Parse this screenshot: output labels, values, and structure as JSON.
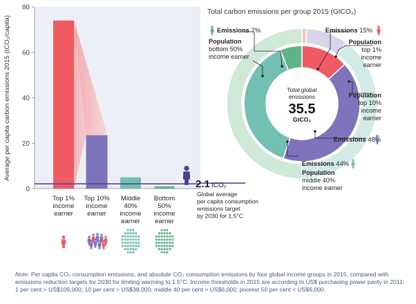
{
  "chart_data": [
    {
      "type": "bar",
      "ylabel": "Average per capita carbon emissions 2015 (tCO₂/capita)",
      "ylim": [
        0,
        80
      ],
      "yticks": [
        "0",
        "20",
        "40",
        "60",
        "80"
      ],
      "categories": [
        [
          "Top 1%",
          "income",
          "earner"
        ],
        [
          "Top 10%",
          "income",
          "earner"
        ],
        [
          "Middle",
          "40%",
          "income",
          "earner"
        ],
        [
          "Bottom",
          "50%",
          "income",
          "earner"
        ]
      ],
      "values": [
        74,
        23.5,
        5,
        1
      ],
      "colors": [
        "#ef5a63",
        "#7d74bc",
        "#72bfb3",
        "#5fb384"
      ],
      "reference_line": {
        "value": 2.1,
        "value_label": "2.1",
        "unit_label": "tCO₂",
        "caption": [
          "Global average",
          "per capita consumption",
          "emissions target",
          "by 2030 for 1.5°C"
        ]
      }
    },
    {
      "type": "pie",
      "title": "Total carbon emissions per group 2015 (GtCO₂)",
      "center": {
        "line1": "Total global",
        "line2": "emissions",
        "value": "35.5",
        "unit": "GtCO₂"
      },
      "emissions_ring": [
        {
          "group": "Top 1%",
          "bold": "Emissions",
          "pct": " 15%",
          "value": 15,
          "color": "#ef5a63"
        },
        {
          "group": "Top 10%",
          "bold": "Emissions",
          "pct": " 48%",
          "value": 48,
          "color": "#7d74bc"
        },
        {
          "group": "Middle 40%",
          "bold": "Emissions",
          "pct": " 44%",
          "value": 44,
          "color": "#72bfb3"
        },
        {
          "group": "Bottom 50%",
          "bold": "Emissions",
          "pct": " 7%",
          "value": 7,
          "color": "#5fb384"
        }
      ],
      "population_ring": [
        {
          "group": "Top 1%",
          "value": 1,
          "label": [
            "Population",
            "top 1%",
            "income",
            "earner"
          ],
          "color": "#f5c2c5"
        },
        {
          "group": "Top 10%",
          "value": 9,
          "label": [
            "Population",
            "top 10%",
            "income",
            "earner"
          ],
          "color": "#d8d4ea"
        },
        {
          "group": "Middle 40%",
          "value": 40,
          "label": [
            "Population",
            "middle 40%",
            "income earner"
          ],
          "color": "#d3ebe7"
        },
        {
          "group": "Bottom 50%",
          "value": 50,
          "label": [
            "Population",
            "bottom 50%",
            "income earner"
          ],
          "color": "#cfe8d8"
        }
      ]
    }
  ],
  "note": {
    "prefix": "Note:",
    "text": " Per capita CO₂ consumption emissions, and absolute CO₂ consumption emissions by four global income groups in 2015, compared with emissions reduction targets for 2030 for limiting warming to 1.5°C. Income thresholds in 2015 are according to US$ purchasing power parity in 2011: 1 per cent > US$109,000; 10 per cent > US$38,000; middle 40 per cent > US$6,000; poorest 50 per cent < US$6,000."
  },
  "icons": [
    "person-icon",
    "person-group-icon",
    "crowd-icon"
  ]
}
